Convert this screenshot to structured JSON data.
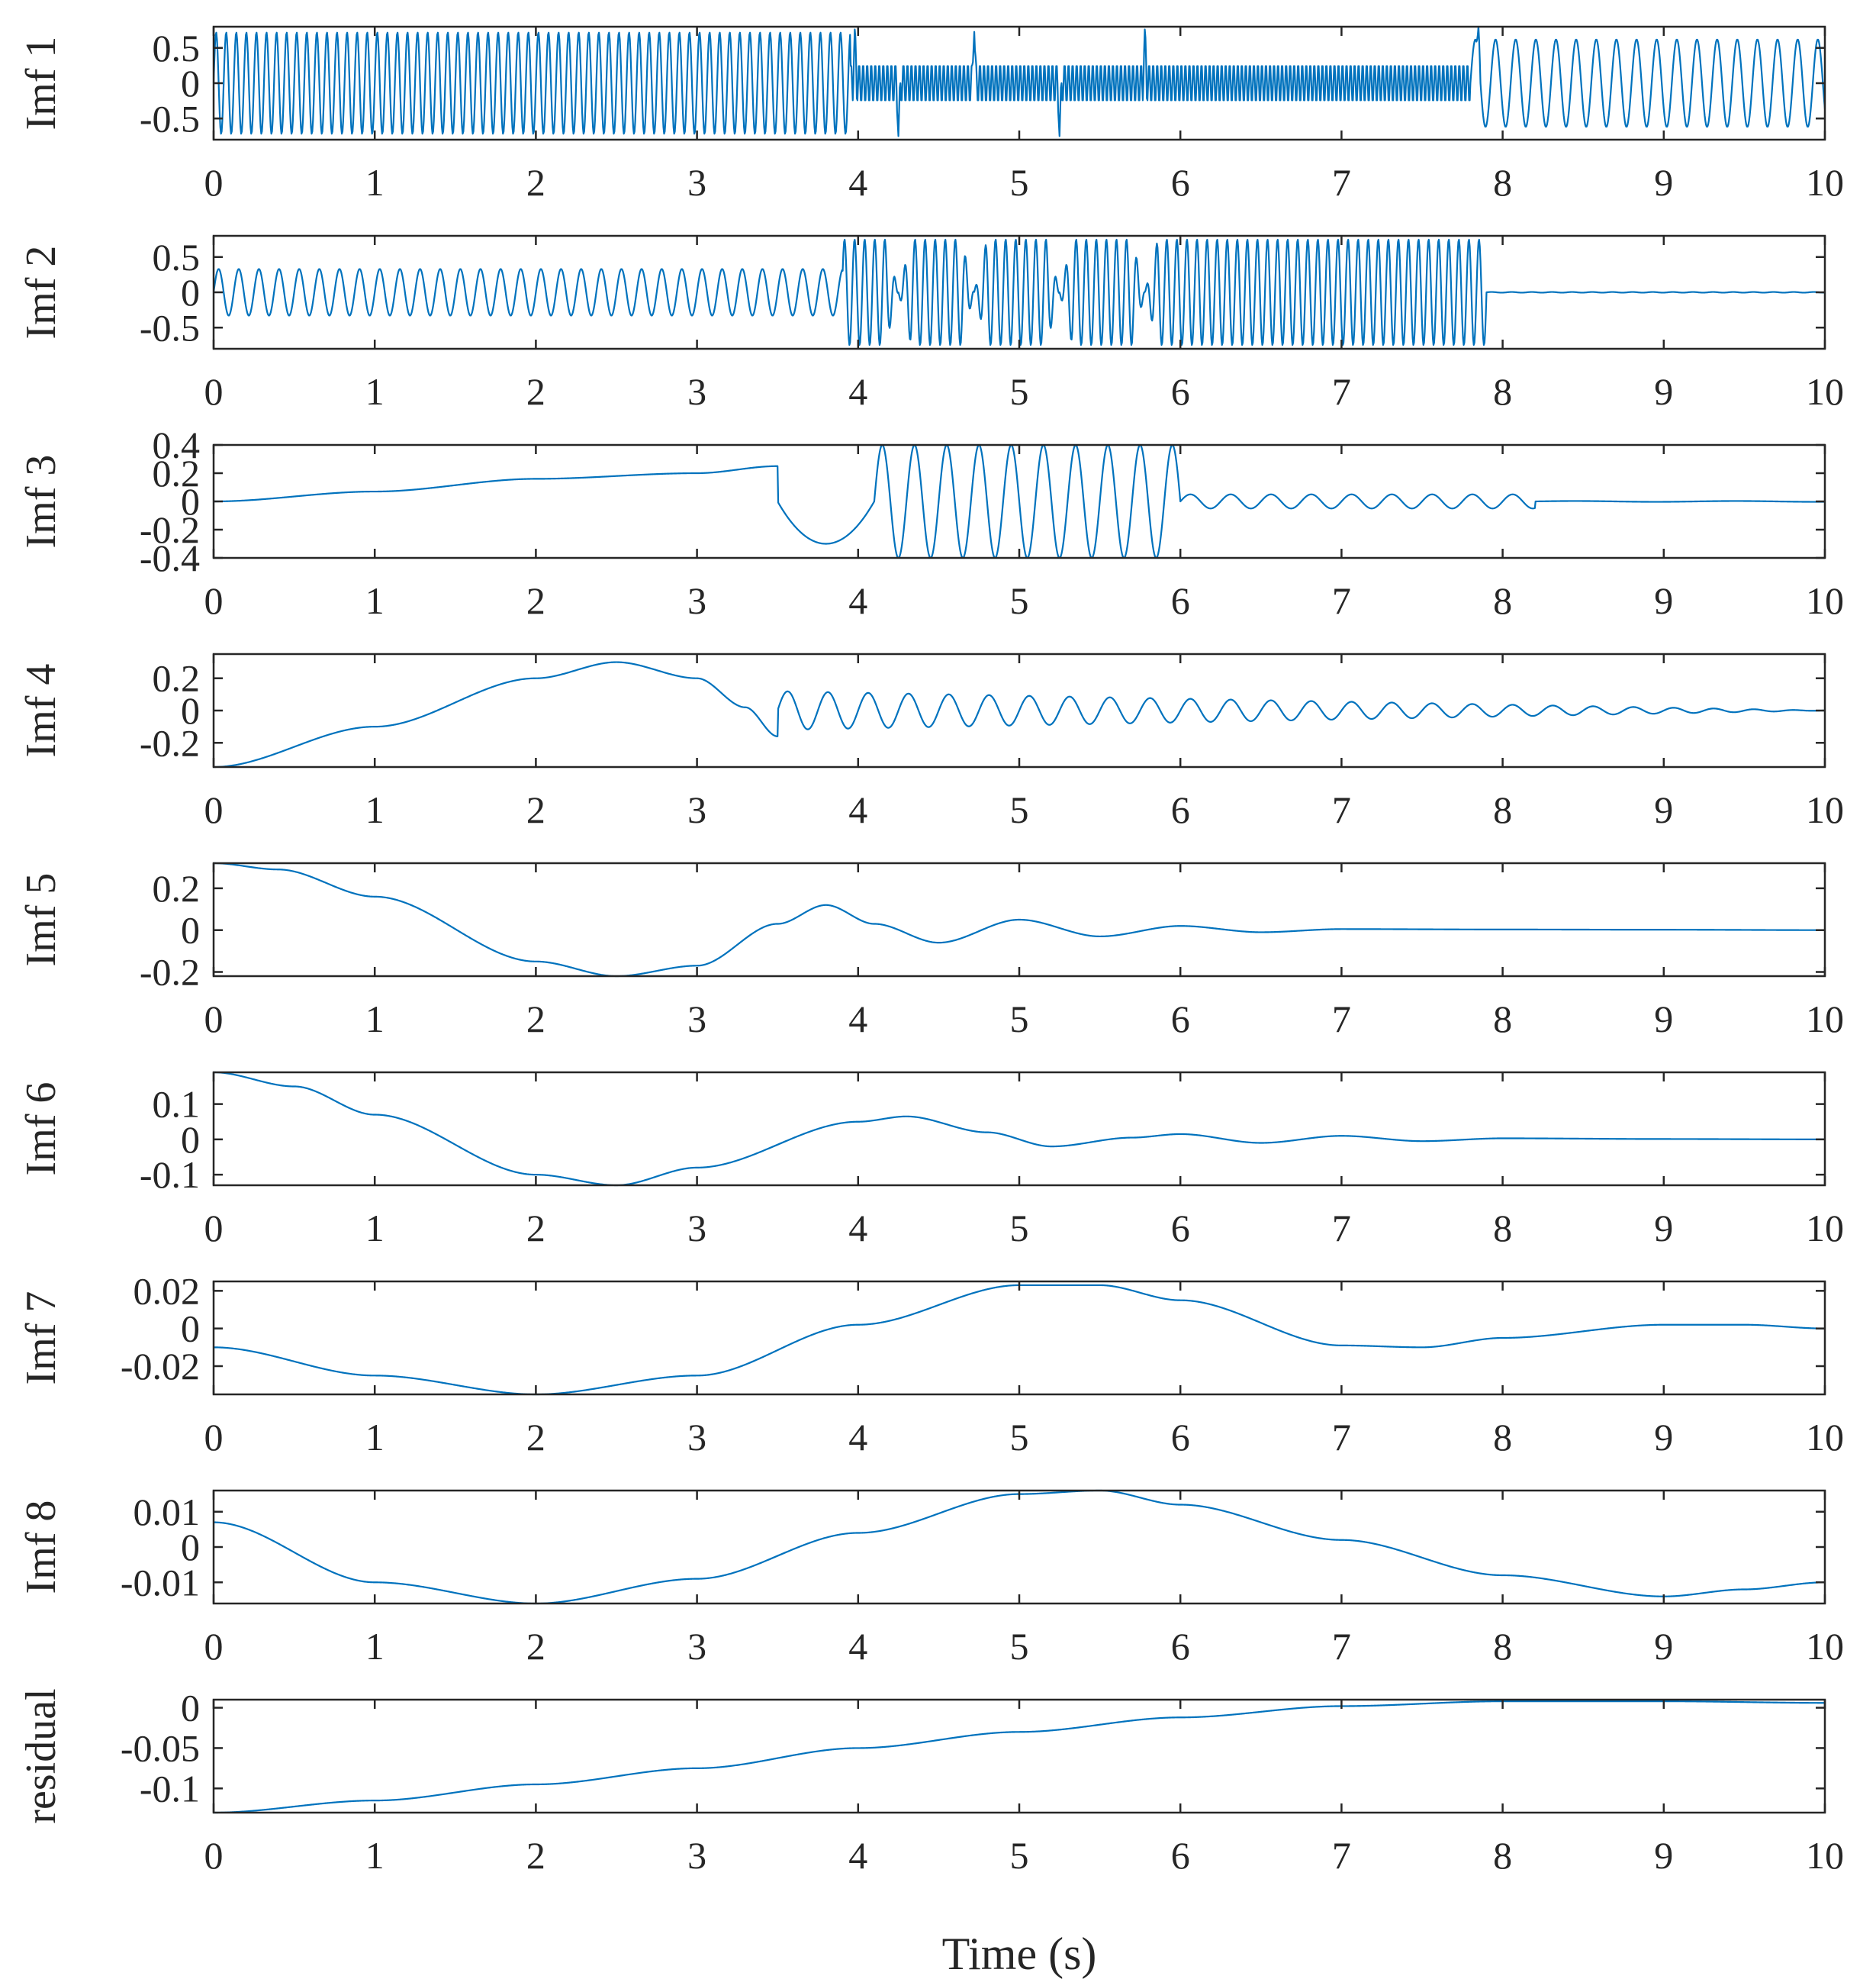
{
  "chart_data": {
    "type": "line",
    "title": "",
    "xlabel": "Time (s)",
    "xlim": [
      0,
      10
    ],
    "xticks": [
      "0",
      "1",
      "2",
      "3",
      "4",
      "5",
      "6",
      "7",
      "8",
      "9",
      "10"
    ],
    "line_color": "#0072BD",
    "panels": [
      {
        "name": "Imf 1",
        "ylabel": "Imf 1",
        "ylim": [
          -0.8,
          0.8
        ],
        "yticks": [
          {
            "v": 0.5,
            "label": "0.5"
          },
          {
            "v": 0,
            "label": "0"
          },
          {
            "v": -0.5,
            "label": "-0.5"
          }
        ],
        "segments": [
          {
            "t0": 0,
            "t1": 3.95,
            "freq": 16,
            "amp": 0.72
          },
          {
            "t0": 3.95,
            "t1": 7.8,
            "freq": 40,
            "amp": 0.28
          },
          {
            "t0": 7.8,
            "t1": 10,
            "freq": 8,
            "amp": 0.62
          }
        ],
        "spikes": [
          {
            "t": 3.98,
            "amp": 0.8
          },
          {
            "t": 4.25,
            "amp": -0.75
          },
          {
            "t": 4.72,
            "amp": 0.8
          },
          {
            "t": 5.25,
            "amp": -0.75
          },
          {
            "t": 5.78,
            "amp": 0.8
          },
          {
            "t": 7.85,
            "amp": 0.8
          }
        ]
      },
      {
        "name": "Imf 2",
        "ylabel": "Imf 2",
        "ylim": [
          -0.8,
          0.8
        ],
        "yticks": [
          {
            "v": 0.5,
            "label": "0.5"
          },
          {
            "v": 0,
            "label": "0"
          },
          {
            "v": -0.5,
            "label": "-0.5"
          }
        ],
        "segments": [
          {
            "t0": 0,
            "t1": 3.9,
            "freq": 8,
            "amp": 0.33
          },
          {
            "t0": 3.9,
            "t1": 7.9,
            "freq": 16,
            "amp": 0.75
          },
          {
            "t0": 7.9,
            "t1": 10,
            "freq": 8,
            "amp": 0.005
          }
        ],
        "dips": [
          4.25,
          4.72,
          5.25,
          5.78
        ]
      },
      {
        "name": "Imf 3",
        "ylabel": "Imf 3",
        "ylim": [
          -0.4,
          0.4
        ],
        "yticks": [
          {
            "v": 0.4,
            "label": "0.4"
          },
          {
            "v": 0.2,
            "label": "0.2"
          },
          {
            "v": 0,
            "label": "0"
          },
          {
            "v": -0.2,
            "label": "-0.2"
          },
          {
            "v": -0.4,
            "label": "-0.4"
          }
        ],
        "trend_points": [
          [
            0,
            0
          ],
          [
            1,
            0.07
          ],
          [
            2,
            0.16
          ],
          [
            3,
            0.2
          ],
          [
            3.5,
            0.25
          ]
        ],
        "dip": {
          "t": 3.8,
          "value": -0.3
        },
        "segments": [
          {
            "t0": 3.9,
            "t1": 6.0,
            "freq": 5,
            "amp": 0.4
          },
          {
            "t0": 6.0,
            "t1": 8.2,
            "freq": 4,
            "amp": 0.05
          },
          {
            "t0": 8.2,
            "t1": 10,
            "freq": 1,
            "amp": 0.003
          }
        ]
      },
      {
        "name": "Imf 4",
        "ylabel": "Imf 4",
        "ylim": [
          -0.35,
          0.35
        ],
        "yticks": [
          {
            "v": 0.2,
            "label": "0.2"
          },
          {
            "v": 0,
            "label": "0"
          },
          {
            "v": -0.2,
            "label": "-0.2"
          }
        ],
        "trend_points": [
          [
            0,
            -0.35
          ],
          [
            1,
            -0.1
          ],
          [
            2,
            0.2
          ],
          [
            2.5,
            0.3
          ],
          [
            3,
            0.2
          ],
          [
            3.3,
            0.02
          ],
          [
            3.5,
            -0.16
          ]
        ],
        "segments": [
          {
            "t0": 3.5,
            "t1": 10,
            "freq": 4,
            "amp0": 0.12,
            "amp1": 0.0
          }
        ]
      },
      {
        "name": "Imf 5",
        "ylabel": "Imf 5",
        "ylim": [
          -0.22,
          0.32
        ],
        "yticks": [
          {
            "v": 0.2,
            "label": "0.2"
          },
          {
            "v": 0,
            "label": "0"
          },
          {
            "v": -0.2,
            "label": "-0.2"
          }
        ],
        "points": [
          [
            0,
            0.32
          ],
          [
            0.4,
            0.29
          ],
          [
            1,
            0.16
          ],
          [
            2,
            -0.15
          ],
          [
            2.5,
            -0.22
          ],
          [
            3,
            -0.17
          ],
          [
            3.5,
            0.03
          ],
          [
            3.8,
            0.12
          ],
          [
            4.1,
            0.03
          ],
          [
            4.5,
            -0.06
          ],
          [
            5.0,
            0.05
          ],
          [
            5.5,
            -0.03
          ],
          [
            6.0,
            0.02
          ],
          [
            6.5,
            -0.01
          ],
          [
            7,
            0.005
          ],
          [
            8,
            0.003
          ],
          [
            9,
            0.002
          ],
          [
            10,
            0
          ]
        ]
      },
      {
        "name": "Imf 6",
        "ylabel": "Imf 6",
        "ylim": [
          -0.13,
          0.19
        ],
        "yticks": [
          {
            "v": 0.1,
            "label": "0.1"
          },
          {
            "v": 0,
            "label": "0"
          },
          {
            "v": -0.1,
            "label": "-0.1"
          }
        ],
        "points": [
          [
            0,
            0.19
          ],
          [
            0.5,
            0.15
          ],
          [
            1,
            0.07
          ],
          [
            2,
            -0.1
          ],
          [
            2.5,
            -0.13
          ],
          [
            3,
            -0.08
          ],
          [
            4,
            0.05
          ],
          [
            4.3,
            0.065
          ],
          [
            4.8,
            0.02
          ],
          [
            5.2,
            -0.02
          ],
          [
            5.7,
            0.005
          ],
          [
            6.0,
            0.015
          ],
          [
            6.5,
            -0.01
          ],
          [
            7.0,
            0.01
          ],
          [
            7.5,
            -0.005
          ],
          [
            8,
            0.003
          ],
          [
            9,
            0.001
          ],
          [
            10,
            0
          ]
        ]
      },
      {
        "name": "Imf 7",
        "ylabel": "Imf 7",
        "ylim": [
          -0.035,
          0.025
        ],
        "yticks": [
          {
            "v": 0.02,
            "label": "0.02"
          },
          {
            "v": 0,
            "label": "0"
          },
          {
            "v": -0.02,
            "label": "-0.02"
          }
        ],
        "points": [
          [
            0,
            -0.01
          ],
          [
            1,
            -0.025
          ],
          [
            2,
            -0.035
          ],
          [
            3,
            -0.025
          ],
          [
            4,
            0.002
          ],
          [
            5,
            0.023
          ],
          [
            5.5,
            0.023
          ],
          [
            6,
            0.015
          ],
          [
            7,
            -0.009
          ],
          [
            7.5,
            -0.01
          ],
          [
            8,
            -0.005
          ],
          [
            9,
            0.002
          ],
          [
            9.5,
            0.002
          ],
          [
            10,
            0
          ]
        ]
      },
      {
        "name": "Imf 8",
        "ylabel": "Imf 8",
        "ylim": [
          -0.016,
          0.016
        ],
        "yticks": [
          {
            "v": 0.01,
            "label": "0.01"
          },
          {
            "v": 0,
            "label": "0"
          },
          {
            "v": -0.01,
            "label": "-0.01"
          }
        ],
        "points": [
          [
            0,
            0.007
          ],
          [
            1,
            -0.01
          ],
          [
            2,
            -0.016
          ],
          [
            3,
            -0.009
          ],
          [
            4,
            0.004
          ],
          [
            5,
            0.015
          ],
          [
            5.5,
            0.016
          ],
          [
            6,
            0.012
          ],
          [
            7,
            0.002
          ],
          [
            8,
            -0.008
          ],
          [
            9,
            -0.014
          ],
          [
            9.5,
            -0.012
          ],
          [
            10,
            -0.01
          ]
        ]
      },
      {
        "name": "residual",
        "ylabel": "residual",
        "ylim": [
          -0.13,
          0.01
        ],
        "yticks": [
          {
            "v": 0,
            "label": "0"
          },
          {
            "v": -0.05,
            "label": "-0.05"
          },
          {
            "v": -0.1,
            "label": "-0.1"
          }
        ],
        "points": [
          [
            0,
            -0.13
          ],
          [
            1,
            -0.115
          ],
          [
            2,
            -0.095
          ],
          [
            3,
            -0.075
          ],
          [
            4,
            -0.05
          ],
          [
            5,
            -0.03
          ],
          [
            6,
            -0.012
          ],
          [
            7,
            0.002
          ],
          [
            8,
            0.008
          ],
          [
            9,
            0.008
          ],
          [
            10,
            0.006
          ]
        ]
      }
    ]
  }
}
